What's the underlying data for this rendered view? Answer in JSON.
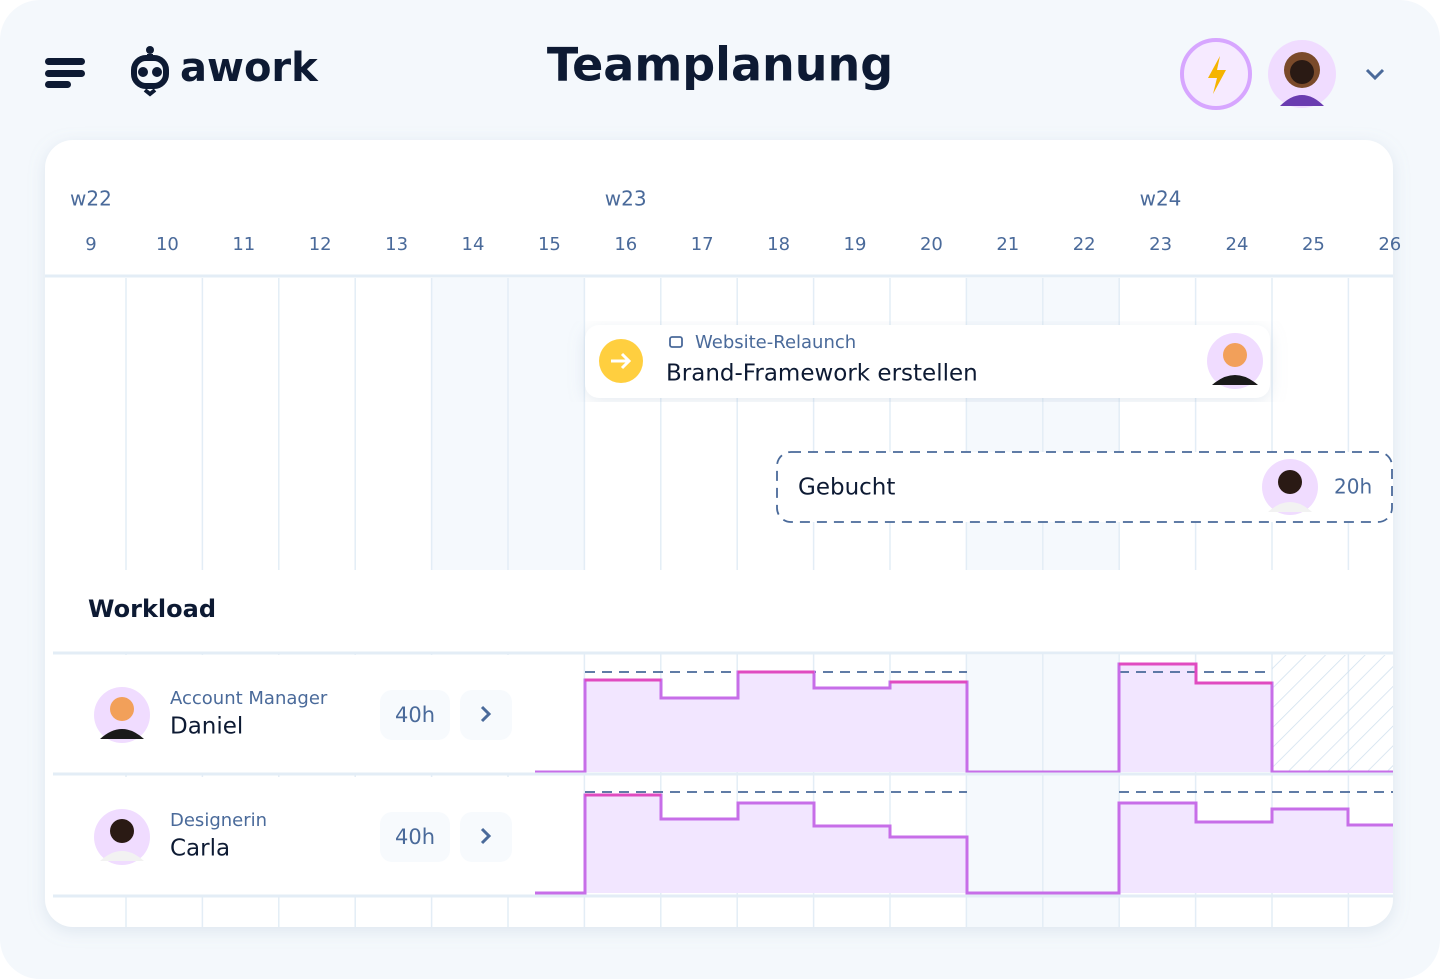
{
  "header": {
    "logo": "awork",
    "title": "Teamplanung"
  },
  "timeline": {
    "weeks": [
      "w22",
      "w23",
      "w24"
    ],
    "days": [
      9,
      10,
      11,
      12,
      13,
      14,
      15,
      16,
      17,
      18,
      19,
      20,
      21,
      22,
      23,
      24,
      25,
      26
    ]
  },
  "task": {
    "project": "Website-Relaunch",
    "name": "Brand-Framework erstellen"
  },
  "booking": {
    "label": "Gebucht",
    "hours": "20h"
  },
  "workload": {
    "title": "Workload",
    "rows": [
      {
        "role": "Account Manager",
        "name": "Daniel",
        "hours": "40h"
      },
      {
        "role": "Designerin",
        "name": "Carla",
        "hours": "40h"
      }
    ]
  }
}
